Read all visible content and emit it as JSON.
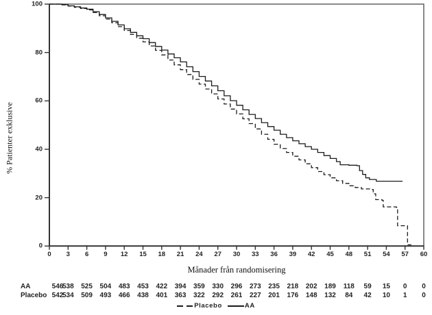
{
  "chart_data": {
    "type": "line",
    "subtype": "kaplan-meier",
    "title": "",
    "xlabel": "Månader från randomisering",
    "ylabel": "% Patienter exklusive",
    "xlim": [
      0,
      60
    ],
    "ylim": [
      0,
      100
    ],
    "grid": false,
    "legend_position": "bottom",
    "x_ticks": [
      0,
      3,
      6,
      9,
      12,
      15,
      18,
      21,
      24,
      27,
      30,
      33,
      36,
      39,
      42,
      45,
      48,
      51,
      54,
      57,
      60
    ],
    "y_ticks": [
      0,
      20,
      40,
      60,
      80,
      100
    ],
    "series": [
      {
        "name": "Placebo",
        "line": "dashed",
        "color": "#1a1a1a",
        "points": [
          [
            0,
            100
          ],
          [
            1,
            100
          ],
          [
            2,
            99.7
          ],
          [
            3,
            99.2
          ],
          [
            4,
            98.7
          ],
          [
            5,
            98.2
          ],
          [
            6,
            97.6
          ],
          [
            7,
            96.5
          ],
          [
            8,
            95.2
          ],
          [
            9,
            93.8
          ],
          [
            10,
            92.3
          ],
          [
            11,
            90.7
          ],
          [
            12,
            89.1
          ],
          [
            13,
            87.5
          ],
          [
            14,
            85.9
          ],
          [
            15,
            84.4
          ],
          [
            16,
            82.7
          ],
          [
            17,
            80.9
          ],
          [
            18,
            79
          ],
          [
            19,
            76.9
          ],
          [
            20,
            74.9
          ],
          [
            21,
            72.9
          ],
          [
            22,
            70.9
          ],
          [
            23,
            68.9
          ],
          [
            24,
            66.9
          ],
          [
            25,
            64.9
          ],
          [
            26,
            62.9
          ],
          [
            27,
            60.8
          ],
          [
            28,
            58.7
          ],
          [
            29,
            56.6
          ],
          [
            30,
            54.6
          ],
          [
            31,
            52.6
          ],
          [
            32,
            50.6
          ],
          [
            33,
            48.4
          ],
          [
            34,
            46.2
          ],
          [
            35,
            44.1
          ],
          [
            36,
            42.1
          ],
          [
            37,
            40.3
          ],
          [
            38,
            38.7
          ],
          [
            39,
            37.1
          ],
          [
            40,
            35.6
          ],
          [
            41,
            34
          ],
          [
            42,
            32.4
          ],
          [
            43,
            30.8
          ],
          [
            44,
            29.5
          ],
          [
            45,
            28.2
          ],
          [
            46,
            27
          ],
          [
            47,
            25.9
          ],
          [
            48,
            24.9
          ],
          [
            49,
            24.2
          ],
          [
            50,
            23.6
          ],
          [
            51.5,
            23.4
          ],
          [
            51.9,
            21.6
          ],
          [
            52.3,
            19.2
          ],
          [
            53.3,
            18.9
          ],
          [
            53.5,
            16.2
          ],
          [
            55.6,
            16
          ],
          [
            55.8,
            8.4
          ],
          [
            57.2,
            8.4
          ],
          [
            57.4,
            0.5
          ],
          [
            58,
            0.5
          ]
        ]
      },
      {
        "name": "AA",
        "line": "solid",
        "color": "#1a1a1a",
        "points": [
          [
            0,
            100
          ],
          [
            1,
            100
          ],
          [
            2,
            99.8
          ],
          [
            3,
            99.3
          ],
          [
            4,
            98.9
          ],
          [
            5,
            98.4
          ],
          [
            6,
            97.9
          ],
          [
            7,
            96.9
          ],
          [
            8,
            95.7
          ],
          [
            9,
            94.3
          ],
          [
            10,
            92.9
          ],
          [
            11,
            91.4
          ],
          [
            12,
            89.8
          ],
          [
            13,
            88.3
          ],
          [
            14,
            86.9
          ],
          [
            15,
            85.7
          ],
          [
            16,
            84.1
          ],
          [
            17,
            82.5
          ],
          [
            18,
            81
          ],
          [
            19,
            79.4
          ],
          [
            20,
            77.8
          ],
          [
            21,
            76.1
          ],
          [
            22,
            74.1
          ],
          [
            23,
            72.1
          ],
          [
            24,
            70.1
          ],
          [
            25,
            68.2
          ],
          [
            26,
            66.2
          ],
          [
            27,
            64.2
          ],
          [
            28,
            62.1
          ],
          [
            29,
            60.1
          ],
          [
            30,
            58.2
          ],
          [
            31,
            56.3
          ],
          [
            32,
            54.4
          ],
          [
            33,
            52.7
          ],
          [
            34,
            51
          ],
          [
            35,
            49.4
          ],
          [
            36,
            47.9
          ],
          [
            37,
            46.2
          ],
          [
            38,
            44.8
          ],
          [
            39,
            43.5
          ],
          [
            40,
            42.3
          ],
          [
            41,
            41.1
          ],
          [
            42,
            40
          ],
          [
            43,
            38.7
          ],
          [
            44,
            37.4
          ],
          [
            45,
            36.2
          ],
          [
            46,
            34.9
          ],
          [
            46.6,
            33.6
          ],
          [
            48,
            33.4
          ],
          [
            49.3,
            33.2
          ],
          [
            49.7,
            31.2
          ],
          [
            50.2,
            29.6
          ],
          [
            50.7,
            28.2
          ],
          [
            51.3,
            27.5
          ],
          [
            52.4,
            26.8
          ],
          [
            56.6,
            26.8
          ]
        ]
      }
    ],
    "risk_table": {
      "rows": [
        {
          "label": "AA",
          "counts": [
            546,
            538,
            525,
            504,
            483,
            453,
            422,
            394,
            359,
            330,
            296,
            273,
            235,
            218,
            202,
            189,
            118,
            59,
            15,
            0,
            0
          ]
        },
        {
          "label": "Placebo",
          "counts": [
            542,
            534,
            509,
            493,
            466,
            438,
            401,
            363,
            322,
            292,
            261,
            227,
            201,
            176,
            148,
            132,
            84,
            42,
            10,
            1,
            0
          ]
        }
      ]
    },
    "legend": [
      {
        "label": "Placebo",
        "line": "dashed"
      },
      {
        "label": "AA",
        "line": "solid"
      }
    ]
  }
}
